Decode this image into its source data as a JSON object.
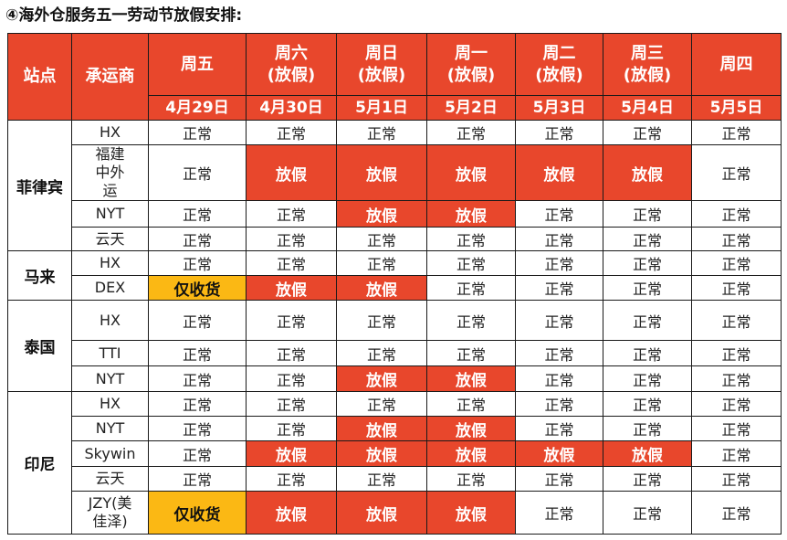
{
  "title": "④海外仓服务五一劳动节放假安排:",
  "header": {
    "station_label": "站点",
    "carrier_label": "承运商",
    "days": [
      {
        "day": "周五",
        "sub": "",
        "date": "4月29日"
      },
      {
        "day": "周六",
        "sub": "(放假)",
        "date": "4月30日"
      },
      {
        "day": "周日",
        "sub": "(放假)",
        "date": "5月1日"
      },
      {
        "day": "周一",
        "sub": "(放假)",
        "date": "5月2日"
      },
      {
        "day": "周二",
        "sub": "(放假)",
        "date": "5月3日"
      },
      {
        "day": "周三",
        "sub": "(放假)",
        "date": "5月4日"
      },
      {
        "day": "周四",
        "sub": "",
        "date": "5月5日"
      }
    ]
  },
  "status_colors": {
    "正常": "#ffffff",
    "放假": "#e8472c",
    "仅收货": "#fbb814"
  },
  "stations": [
    {
      "name": "菲律宾",
      "carriers": [
        {
          "name": "HX",
          "statuses": [
            "正常",
            "正常",
            "正常",
            "正常",
            "正常",
            "正常",
            "正常"
          ]
        },
        {
          "name": "福建中外运",
          "statuses": [
            "正常",
            "放假",
            "放假",
            "放假",
            "放假",
            "放假",
            "正常"
          ]
        },
        {
          "name": "NYT",
          "statuses": [
            "正常",
            "正常",
            "放假",
            "放假",
            "正常",
            "正常",
            "正常"
          ]
        },
        {
          "name": "云天",
          "statuses": [
            "正常",
            "正常",
            "正常",
            "正常",
            "正常",
            "正常",
            "正常"
          ]
        }
      ]
    },
    {
      "name": "马来",
      "carriers": [
        {
          "name": "HX",
          "statuses": [
            "正常",
            "正常",
            "正常",
            "正常",
            "正常",
            "正常",
            "正常"
          ]
        },
        {
          "name": "DEX",
          "statuses": [
            "仅收货",
            "放假",
            "放假",
            "正常",
            "正常",
            "正常",
            "正常"
          ]
        }
      ]
    },
    {
      "name": "泰国",
      "carriers": [
        {
          "name": "HX",
          "statuses": [
            "正常",
            "正常",
            "正常",
            "正常",
            "正常",
            "正常",
            "正常"
          ]
        },
        {
          "name": "TTI",
          "statuses": [
            "正常",
            "正常",
            "正常",
            "正常",
            "正常",
            "正常",
            "正常"
          ]
        },
        {
          "name": "NYT",
          "statuses": [
            "正常",
            "正常",
            "放假",
            "放假",
            "正常",
            "正常",
            "正常"
          ]
        }
      ]
    },
    {
      "name": "印尼",
      "carriers": [
        {
          "name": "HX",
          "statuses": [
            "正常",
            "正常",
            "正常",
            "正常",
            "正常",
            "正常",
            "正常"
          ]
        },
        {
          "name": "NYT",
          "statuses": [
            "正常",
            "正常",
            "放假",
            "放假",
            "正常",
            "正常",
            "正常"
          ]
        },
        {
          "name": "Skywin",
          "statuses": [
            "正常",
            "放假",
            "放假",
            "放假",
            "放假",
            "放假",
            "正常"
          ]
        },
        {
          "name": "云天",
          "statuses": [
            "正常",
            "正常",
            "正常",
            "正常",
            "正常",
            "正常",
            "正常"
          ]
        },
        {
          "name": "JZY(美佳泽)",
          "statuses": [
            "仅收货",
            "放假",
            "放假",
            "放假",
            "正常",
            "正常",
            "正常"
          ]
        }
      ]
    }
  ]
}
